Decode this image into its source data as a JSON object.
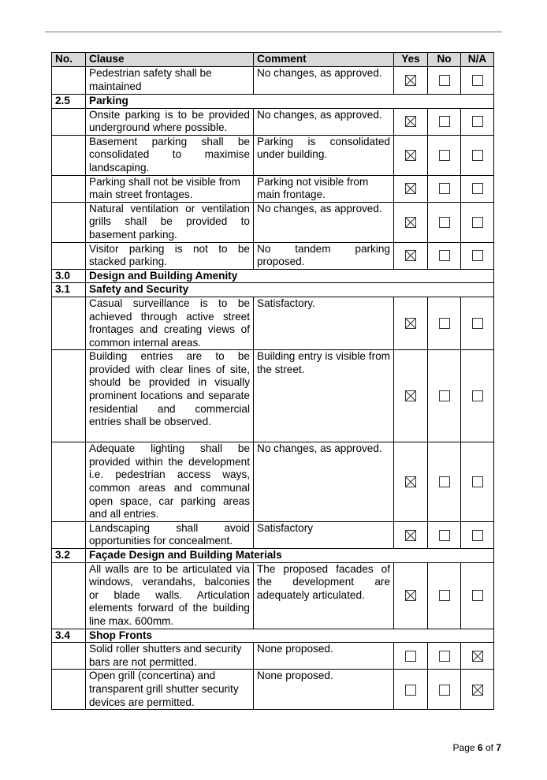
{
  "header": {
    "no": "No.",
    "clause": "Clause",
    "comment": "Comment",
    "yes": "Yes",
    "no_col": "No",
    "na": "N/A"
  },
  "rows": [
    {
      "type": "item",
      "no": "",
      "clause": "Pedestrian safety shall be maintained",
      "comment": "No changes, as approved.",
      "check": "yes"
    },
    {
      "type": "section",
      "no": "2.5",
      "title": "Parking"
    },
    {
      "type": "item",
      "no": "",
      "clause": "Onsite parking is to be provided underground where possible.",
      "comment": "No changes, as approved.",
      "check": "yes"
    },
    {
      "type": "item",
      "no": "",
      "clause": "Basement parking shall be consolidated to maximise landscaping.",
      "comment": "Parking is consolidated under building.",
      "check": "yes"
    },
    {
      "type": "item",
      "no": "",
      "clause": "Parking shall not be visible from main street frontages.",
      "comment": "Parking not visible from main frontage.",
      "check": "yes"
    },
    {
      "type": "item",
      "no": "",
      "clause": "Natural ventilation or ventilation grills shall be provided to basement parking.",
      "comment": "No changes, as approved.",
      "check": "yes"
    },
    {
      "type": "item",
      "no": "",
      "clause": "Visitor parking is not to be stacked parking.",
      "comment": "No tandem parking proposed.",
      "check": "yes"
    },
    {
      "type": "section",
      "no": "3.0",
      "title": "Design and Building Amenity"
    },
    {
      "type": "section",
      "no": "3.1",
      "title": "Safety and Security"
    },
    {
      "type": "item",
      "no": "",
      "clause": "Casual surveillance is to be achieved through active street frontages and creating views of common internal areas.",
      "comment": "Satisfactory.",
      "check": "yes"
    },
    {
      "type": "item",
      "no": "",
      "clause": "Building entries are to be provided with clear lines of site, should be provided in visually prominent locations and separate residential and commercial entries shall be observed.",
      "comment": "Building entry is visible from the street.",
      "check": "yes"
    },
    {
      "type": "item",
      "no": "",
      "clause": "Adequate lighting shall be provided within the development i.e. pedestrian access ways, common areas and communal open space, car parking areas and all entries.",
      "comment": "No changes, as approved.",
      "check": "yes"
    },
    {
      "type": "item",
      "no": "",
      "clause": "Landscaping shall avoid opportunities for concealment.",
      "comment": "Satisfactory",
      "check": "yes"
    },
    {
      "type": "section",
      "no": "3.2",
      "title": "Façade Design and Building Materials"
    },
    {
      "type": "item",
      "no": "",
      "clause": "All walls are to be articulated via windows, verandahs, balconies or blade walls. Articulation elements forward of the building line max. 600mm.",
      "comment": "The proposed facades of the development are adequately articulated.",
      "check": "yes"
    },
    {
      "type": "section",
      "no": "3.4",
      "title": "Shop Fronts"
    },
    {
      "type": "item",
      "no": "",
      "clause": "Solid roller shutters and security bars are not permitted.",
      "comment": "None proposed.",
      "check": "na"
    },
    {
      "type": "item",
      "no": "",
      "clause": "Open grill (concertina) and transparent grill shutter security devices are permitted.",
      "comment": "None proposed.",
      "check": "na"
    }
  ],
  "footer": {
    "page_label": "Page",
    "page": "6",
    "of_label": "of",
    "total": "7"
  }
}
